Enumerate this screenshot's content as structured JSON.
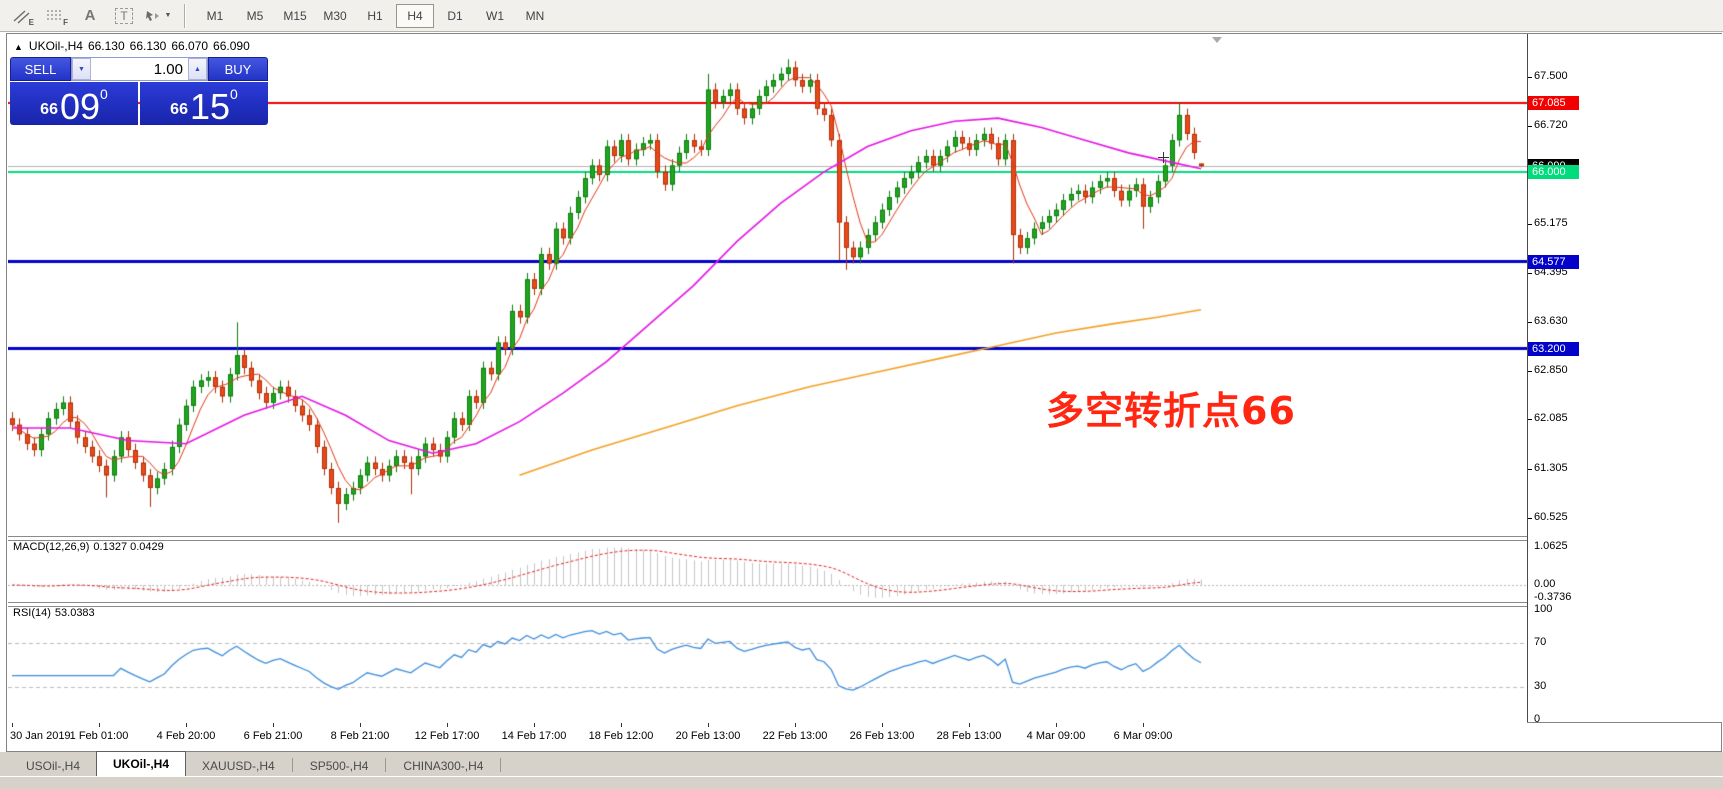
{
  "toolbar": {
    "icons": [
      {
        "name": "equidistant-channel",
        "sub": "E"
      },
      {
        "name": "fibonacci-channel",
        "sub": "F"
      },
      {
        "name": "text-label",
        "glyph": "A"
      },
      {
        "name": "text-box",
        "glyph": "T"
      },
      {
        "name": "arrow-tools",
        "caret": "▼"
      }
    ],
    "timeframes": [
      "M1",
      "M5",
      "M15",
      "M30",
      "H1",
      "H4",
      "D1",
      "W1",
      "MN"
    ],
    "active_timeframe": "H4"
  },
  "chart_header": {
    "collapse_arrow": "▲",
    "symbol": "UKOil-,H4",
    "open": "66.130",
    "high": "66.130",
    "low": "66.070",
    "close": "66.090"
  },
  "trade_panel": {
    "sell_label": "SELL",
    "buy_label": "BUY",
    "volume": "1.00",
    "spinner_down": "▼",
    "spinner_up": "▲",
    "sell_price": {
      "small": "66",
      "big": "09",
      "sup": "0"
    },
    "buy_price": {
      "small": "66",
      "big": "15",
      "sup": "0"
    }
  },
  "price_axis": {
    "ticks": [
      {
        "label": "67.500",
        "price": 67.5
      },
      {
        "label": "66.720",
        "price": 66.72
      },
      {
        "label": "65.175",
        "price": 65.175
      },
      {
        "label": "64.395",
        "price": 64.395
      },
      {
        "label": "63.630",
        "price": 63.63
      },
      {
        "label": "62.850",
        "price": 62.85
      },
      {
        "label": "62.085",
        "price": 62.085
      },
      {
        "label": "61.305",
        "price": 61.305
      },
      {
        "label": "60.525",
        "price": 60.525
      }
    ],
    "special": [
      {
        "label": "67.085",
        "price": 67.085,
        "bg": "#f20000",
        "fg": "#ffffff"
      },
      {
        "label": "66.090",
        "price": 66.09,
        "bg": "#000000",
        "fg": "#ffffff"
      },
      {
        "label": "64.577",
        "price": 64.577,
        "bg": "#0202c8",
        "fg": "#ffffff"
      },
      {
        "label": "63.200",
        "price": 63.2,
        "bg": "#0202c8",
        "fg": "#ffffff"
      },
      {
        "label": "66.000",
        "price": 66.0,
        "bg": "#00dc7c",
        "fg": "#ffffff"
      }
    ]
  },
  "panels": {
    "macd": {
      "title": "MACD(12,26,9)",
      "values": "0.1327 0.0429",
      "axis": [
        {
          "label": "1.0625",
          "value": 1.0625
        },
        {
          "label": "0.00",
          "value": 0
        },
        {
          "label": "-0.3736",
          "value": -0.3736
        }
      ]
    },
    "rsi": {
      "title": "RSI(14)",
      "value": "53.0383",
      "axis": [
        {
          "label": "100",
          "value": 100
        },
        {
          "label": "70",
          "value": 70
        },
        {
          "label": "30",
          "value": 30
        },
        {
          "label": "0",
          "value": 0
        }
      ],
      "levels": [
        70,
        30
      ]
    }
  },
  "date_axis": {
    "labels": [
      "30 Jan 2019",
      "1 Feb 01:00",
      "4 Feb 20:00",
      "6 Feb 21:00",
      "8 Feb 21:00",
      "12 Feb 17:00",
      "14 Feb 17:00",
      "18 Feb 12:00",
      "20 Feb 13:00",
      "22 Feb 13:00",
      "26 Feb 13:00",
      "28 Feb 13:00",
      "4 Mar 09:00",
      "6 Mar 09:00"
    ]
  },
  "annotation": {
    "text": "多空转折点66",
    "color": "#ff2612"
  },
  "tab_bar": {
    "separator": "|",
    "tabs": [
      {
        "label": "USOil-,H4",
        "active": false
      },
      {
        "label": "UKOil-,H4",
        "active": true
      },
      {
        "label": "XAUUSD-,H4",
        "active": false
      },
      {
        "label": "SP500-,H4",
        "active": false
      },
      {
        "label": "CHINA300-,H4",
        "active": false
      }
    ]
  },
  "chart_data": {
    "type": "candlestick",
    "symbol": "UKOil-",
    "period": "H4",
    "ohlc_current": {
      "open": 66.13,
      "high": 66.13,
      "low": 66.07,
      "close": 66.09
    },
    "ylim": [
      60.24,
      68.18
    ],
    "x_tick_labels": [
      "30 Jan 2019",
      "1 Feb 01:00",
      "4 Feb 20:00",
      "6 Feb 21:00",
      "8 Feb 21:00",
      "12 Feb 17:00",
      "14 Feb 17:00",
      "18 Feb 12:00",
      "20 Feb 13:00",
      "22 Feb 13:00",
      "26 Feb 13:00",
      "28 Feb 13:00",
      "4 Mar 09:00",
      "6 Mar 09:00"
    ],
    "y_tick_labels": [
      "67.500",
      "66.720",
      "65.175",
      "64.395",
      "63.630",
      "62.850",
      "62.085",
      "61.305",
      "60.525"
    ],
    "first_open": 62.1,
    "default_wick": 0.1,
    "closes": [
      62.0,
      61.85,
      61.7,
      61.6,
      61.85,
      62.1,
      62.25,
      62.35,
      62.05,
      61.8,
      61.65,
      61.5,
      61.35,
      61.2,
      61.5,
      61.8,
      61.6,
      61.4,
      61.2,
      61.0,
      61.15,
      61.3,
      61.65,
      62.0,
      62.3,
      62.6,
      62.7,
      62.75,
      62.6,
      62.45,
      62.8,
      63.1,
      62.9,
      62.7,
      62.5,
      62.35,
      62.5,
      62.6,
      62.45,
      62.3,
      62.15,
      62.0,
      61.65,
      61.3,
      61.0,
      60.75,
      60.9,
      61.0,
      61.2,
      61.4,
      61.3,
      61.2,
      61.35,
      61.5,
      61.4,
      61.3,
      61.5,
      61.7,
      61.6,
      61.5,
      61.8,
      62.1,
      62.0,
      62.45,
      62.35,
      62.9,
      62.8,
      63.3,
      63.2,
      63.8,
      63.7,
      64.3,
      64.15,
      64.7,
      64.55,
      65.1,
      64.95,
      65.35,
      65.6,
      65.9,
      66.1,
      65.95,
      66.4,
      66.25,
      66.5,
      66.2,
      66.35,
      66.45,
      66.5,
      66.0,
      65.8,
      66.1,
      66.3,
      66.5,
      66.4,
      66.35,
      67.3,
      67.1,
      67.2,
      67.3,
      67.0,
      66.85,
      67.0,
      67.2,
      67.35,
      67.45,
      67.55,
      67.65,
      67.45,
      67.35,
      67.45,
      67.0,
      66.9,
      66.5,
      65.2,
      64.8,
      64.65,
      64.8,
      65.0,
      65.2,
      65.4,
      65.6,
      65.75,
      65.9,
      66.0,
      66.15,
      66.25,
      66.1,
      66.25,
      66.4,
      66.55,
      66.45,
      66.35,
      66.5,
      66.6,
      66.45,
      66.2,
      66.5,
      65.0,
      64.8,
      64.95,
      65.1,
      65.2,
      65.3,
      65.4,
      65.55,
      65.65,
      65.7,
      65.6,
      65.75,
      65.85,
      65.9,
      65.7,
      65.55,
      65.7,
      65.8,
      65.45,
      65.6,
      65.85,
      66.1,
      66.5,
      66.9,
      66.6,
      66.3,
      66.09
    ],
    "wick_overrides": {
      "13": {
        "l": 60.85
      },
      "19": {
        "l": 60.7
      },
      "31": {
        "h": 63.62
      },
      "45": {
        "l": 60.45
      },
      "55": {
        "l": 60.9
      },
      "96": {
        "h": 67.55
      },
      "107": {
        "h": 67.78
      },
      "114": {
        "l": 64.6
      },
      "115": {
        "l": 64.45
      },
      "138": {
        "l": 64.55
      },
      "156": {
        "l": 65.1
      },
      "161": {
        "h": 67.1
      },
      "164": {
        "o": 66.13,
        "h": 66.13,
        "l": 66.07
      }
    },
    "bull_color": "#22a51e",
    "bear_color": "#e9491b",
    "bull_border": "#0d7d10",
    "bear_border": "#b03108",
    "horizontal_lines": [
      {
        "price": 67.085,
        "color": "#f20000",
        "width": 2
      },
      {
        "price": 66.0,
        "color": "#00dc7c",
        "width": 2
      },
      {
        "price": 64.577,
        "color": "#0202c8",
        "width": 3
      },
      {
        "price": 63.2,
        "color": "#0202c8",
        "width": 3
      }
    ],
    "current_price_line": {
      "price": 66.09,
      "color": "#b4b4b4"
    },
    "moving_averages": [
      {
        "name": "fast-ma",
        "type": "sma",
        "period": 5,
        "color": "#e23a17",
        "width": 1
      },
      {
        "name": "medium-ma",
        "color": "#e416e4",
        "width": 1.6,
        "keyframes": [
          [
            0,
            61.95
          ],
          [
            8,
            61.95
          ],
          [
            16,
            61.75
          ],
          [
            24,
            61.7
          ],
          [
            32,
            62.15
          ],
          [
            40,
            62.45
          ],
          [
            46,
            62.15
          ],
          [
            52,
            61.75
          ],
          [
            58,
            61.55
          ],
          [
            64,
            61.7
          ],
          [
            70,
            62.05
          ],
          [
            76,
            62.5
          ],
          [
            82,
            63.0
          ],
          [
            88,
            63.6
          ],
          [
            94,
            64.2
          ],
          [
            100,
            64.9
          ],
          [
            106,
            65.5
          ],
          [
            112,
            66.0
          ],
          [
            118,
            66.4
          ],
          [
            124,
            66.65
          ],
          [
            130,
            66.8
          ],
          [
            136,
            66.85
          ],
          [
            142,
            66.7
          ],
          [
            148,
            66.5
          ],
          [
            154,
            66.3
          ],
          [
            160,
            66.15
          ],
          [
            164,
            66.05
          ]
        ]
      },
      {
        "name": "slow-ma",
        "color": "#f2a227",
        "width": 1.6,
        "keyframes": [
          [
            70,
            61.2
          ],
          [
            80,
            61.6
          ],
          [
            90,
            61.95
          ],
          [
            100,
            62.3
          ],
          [
            110,
            62.6
          ],
          [
            120,
            62.85
          ],
          [
            128,
            63.05
          ],
          [
            136,
            63.25
          ],
          [
            144,
            63.45
          ],
          [
            152,
            63.6
          ],
          [
            158,
            63.7
          ],
          [
            164,
            63.82
          ]
        ]
      }
    ],
    "macd": {
      "fast": 12,
      "slow": 26,
      "signal": 9,
      "current": [
        0.1327,
        0.0429
      ],
      "hist_color": "#c6c6c6",
      "signal_color": "#e02929",
      "range": [
        -0.47,
        1.31
      ]
    },
    "rsi": {
      "period": 14,
      "current": 53.0383,
      "color": "#3f8edc",
      "range": [
        0,
        100
      ],
      "levels": [
        70,
        30
      ]
    }
  }
}
